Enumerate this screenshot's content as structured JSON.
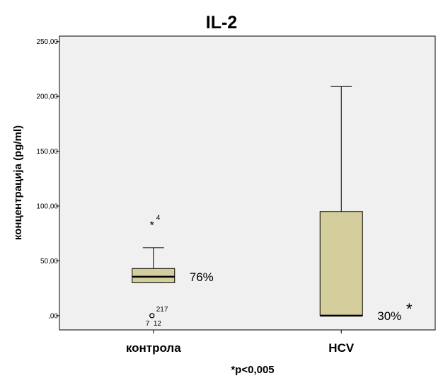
{
  "chart_data": {
    "type": "boxplot",
    "title": "IL-2",
    "ylabel": "концентрација (pg/ml)",
    "xlabel": "*p<0,005",
    "ylim": [
      -13,
      255
    ],
    "yticks": [
      0,
      50,
      100,
      150,
      200,
      250
    ],
    "ytick_labels": [
      ",00",
      "50,00",
      "100,00",
      "150,00",
      "200,00",
      "250,00"
    ],
    "grid": false,
    "box_color": "#d3ce9c",
    "plot_background": "#f0f0f0",
    "groups": [
      {
        "category": "контрола",
        "whisker_low": 30,
        "q1": 30,
        "median": 35.5,
        "q3": 43,
        "whisker_high": 62,
        "annotation": "76%",
        "annotation_star": "",
        "outliers": [
          {
            "value": 83,
            "symbol": "*",
            "label": "4"
          },
          {
            "value": 0,
            "symbol": "o",
            "label": "217"
          },
          {
            "value": 0,
            "symbol": "",
            "label": "7  12"
          }
        ]
      },
      {
        "category": "HCV",
        "whisker_low": 0,
        "q1": 0,
        "median": 0,
        "q3": 95,
        "whisker_high": 209,
        "annotation": "30%",
        "annotation_star": "*",
        "outliers": []
      }
    ]
  }
}
